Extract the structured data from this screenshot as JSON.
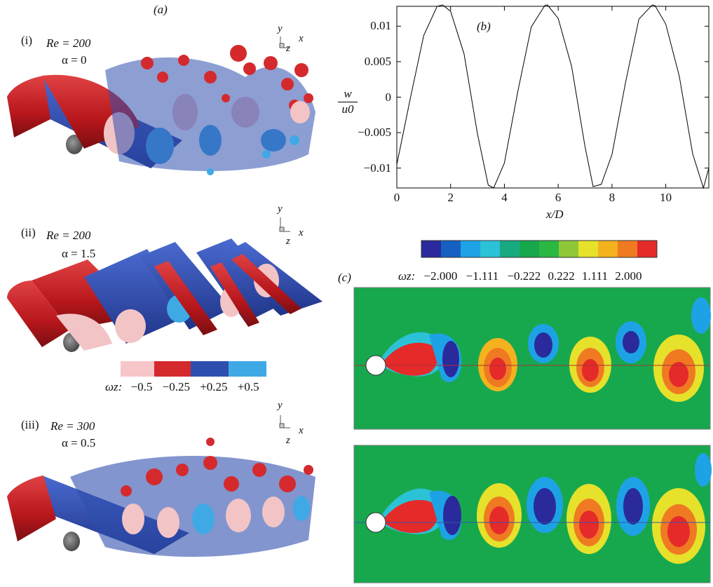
{
  "figure": {
    "panel_a_label": "(a)",
    "panel_b_label": "(b)",
    "panel_c_label": "(c)"
  },
  "panel_a": {
    "subpanels": [
      {
        "roman": "(i)",
        "re": "Re = 200",
        "alpha": "α = 0"
      },
      {
        "roman": "(ii)",
        "re": "Re = 200",
        "alpha": "α = 1.5"
      },
      {
        "roman": "(iii)",
        "re": "Re = 300",
        "alpha": "α = 0.5"
      }
    ],
    "axis_y": "y",
    "axis_x": "x",
    "axis_z": "z",
    "legend_prefix": "ωz:",
    "legend_values": [
      "−0.5",
      "−0.25",
      "+0.25",
      "+0.5"
    ],
    "legend_colors": [
      "#f6c6c8",
      "#d42a2e",
      "#2f4fae",
      "#3fa9e6"
    ]
  },
  "panel_b": {
    "ylabel_num": "w",
    "ylabel_den": "u0",
    "xlabel": "x/D",
    "x_ticks": [
      "0",
      "2",
      "4",
      "6",
      "8",
      "10"
    ],
    "y_ticks": [
      "0.01",
      "0.005",
      "0",
      "−0.005",
      "−0.01"
    ]
  },
  "panel_c": {
    "colorbar_prefix": "ωz:",
    "colorbar_labels": [
      "−2.000",
      "−1.111",
      "−0.222",
      "0.222",
      "1.111",
      "2.000"
    ],
    "colorbar_colors": [
      "#2a2a9c",
      "#1560c0",
      "#1ea2e6",
      "#2bc2d8",
      "#17aa80",
      "#17a84e",
      "#2bb842",
      "#8ec83a",
      "#e6e12a",
      "#f3b21e",
      "#ef7a22",
      "#e52a2a"
    ]
  },
  "chart_data": {
    "type": "line",
    "title": "",
    "xlabel": "x/D",
    "ylabel": "w/u0",
    "xlim": [
      0,
      11.6
    ],
    "ylim": [
      -0.0128,
      0.0128
    ],
    "grid": false,
    "series": [
      {
        "x": [
          0,
          0.5,
          1.0,
          1.5,
          1.7,
          2.0,
          2.5,
          3.0,
          3.4,
          3.6,
          4.0,
          4.5,
          5.0,
          5.5,
          5.6,
          6.0,
          6.5,
          7.0,
          7.3,
          7.6,
          8.0,
          8.5,
          9.0,
          9.5,
          9.6,
          10.0,
          10.5,
          11.0,
          11.4,
          11.6
        ],
        "y": [
          -0.0095,
          -0.0002,
          0.0087,
          0.0128,
          0.013,
          0.0121,
          0.0061,
          -0.0052,
          -0.0124,
          -0.0128,
          -0.0093,
          0.0008,
          0.0099,
          0.0129,
          0.013,
          0.0111,
          0.0043,
          -0.007,
          -0.0126,
          -0.0123,
          -0.0081,
          0.002,
          0.011,
          0.013,
          0.0129,
          0.0103,
          0.003,
          -0.008,
          -0.0128,
          -0.01
        ]
      }
    ]
  }
}
